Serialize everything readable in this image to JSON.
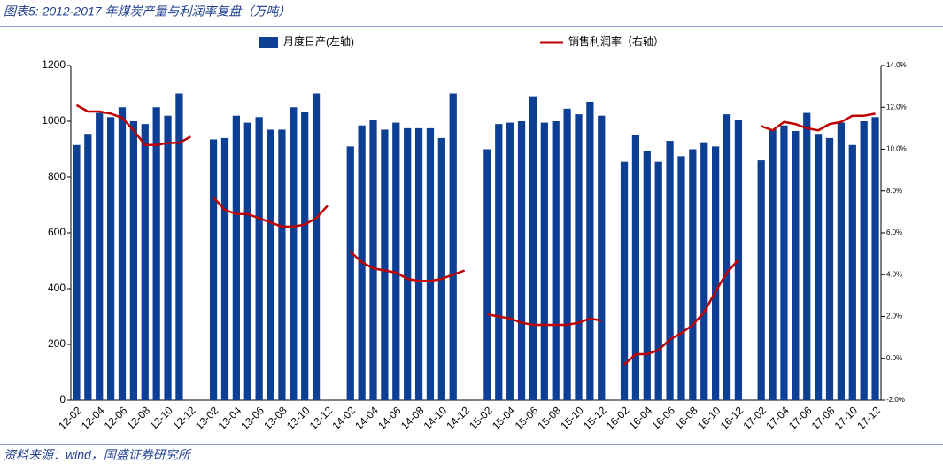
{
  "chart_data": {
    "type": "bar-line",
    "title": "图表5:  2012-2017 年煤炭产量与利润率复盘（万吨）",
    "source": "资料来源：wind，国盛证券研究所",
    "categories": [
      "12-02",
      null,
      "12-04",
      null,
      "12-06",
      null,
      "12-08",
      null,
      "12-10",
      null,
      "12-12",
      null,
      "13-02",
      null,
      "13-04",
      null,
      "13-06",
      null,
      "13-08",
      null,
      "13-10",
      null,
      "13-12",
      null,
      "14-02",
      null,
      "14-04",
      null,
      "14-06",
      null,
      "14-08",
      null,
      "14-10",
      null,
      "14-12",
      null,
      "15-02",
      null,
      "15-04",
      null,
      "15-06",
      null,
      "15-08",
      null,
      "15-10",
      null,
      "15-12",
      null,
      "16-02",
      null,
      "16-04",
      null,
      "16-06",
      null,
      "16-08",
      null,
      "16-10",
      null,
      "16-12",
      null,
      "17-02",
      null,
      "17-04",
      null,
      "17-06",
      null,
      "17-08",
      null,
      "17-10",
      null,
      "17-12"
    ],
    "series": [
      {
        "name": "月度日产(左轴)",
        "color": "#0d3f94",
        "type": "bar",
        "values": [
          915,
          955,
          1030,
          1015,
          1050,
          1000,
          990,
          1050,
          1020,
          1100,
          null,
          null,
          935,
          940,
          1020,
          995,
          1015,
          970,
          970,
          1050,
          1035,
          1100,
          null,
          null,
          910,
          985,
          1005,
          970,
          995,
          975,
          975,
          975,
          940,
          1100,
          null,
          null,
          900,
          990,
          995,
          1000,
          1090,
          995,
          1000,
          1045,
          1025,
          1070,
          1020,
          null,
          855,
          950,
          895,
          855,
          930,
          875,
          900,
          925,
          910,
          1025,
          1005,
          null,
          860,
          970,
          985,
          965,
          1030,
          955,
          940,
          995,
          915,
          1000,
          1015
        ]
      },
      {
        "name": "销售利润率（右轴）",
        "color": "#c00000",
        "type": "line",
        "axis": "y2",
        "values": [
          12.1,
          11.8,
          11.8,
          11.7,
          11.5,
          10.9,
          10.2,
          10.2,
          10.3,
          10.3,
          10.6,
          null,
          7.7,
          7.1,
          6.9,
          6.9,
          6.7,
          6.5,
          6.3,
          6.3,
          6.4,
          6.7,
          7.3,
          null,
          5.1,
          4.6,
          4.3,
          4.2,
          4.1,
          3.8,
          3.7,
          3.7,
          3.8,
          4.0,
          4.2,
          null,
          2.1,
          2.0,
          1.9,
          1.7,
          1.6,
          1.6,
          1.6,
          1.6,
          1.7,
          1.9,
          1.8,
          null,
          -0.3,
          0.2,
          0.2,
          0.4,
          0.9,
          1.2,
          1.6,
          2.2,
          3.2,
          4.1,
          4.7,
          null,
          11.1,
          10.9,
          11.3,
          11.2,
          11.0,
          10.9,
          11.2,
          11.3,
          11.6,
          11.6,
          11.7
        ]
      }
    ],
    "ylim": [
      0,
      1200
    ],
    "yticks": [
      0,
      200,
      400,
      600,
      800,
      1000,
      1200
    ],
    "y2lim": [
      -2,
      14
    ],
    "y2ticks": [
      {
        "value": -2,
        "label": "-2.0%"
      },
      {
        "value": 0,
        "label": "0.0%"
      },
      {
        "value": 2,
        "label": "2.0%"
      },
      {
        "value": 4,
        "label": "4.0%"
      },
      {
        "value": 6,
        "label": "6.0%"
      },
      {
        "value": 8,
        "label": "8.0%"
      },
      {
        "value": 10,
        "label": "10.0%"
      },
      {
        "value": 12,
        "label": "12.0%"
      },
      {
        "value": 14,
        "label": "14.0%"
      }
    ],
    "grid": false
  }
}
